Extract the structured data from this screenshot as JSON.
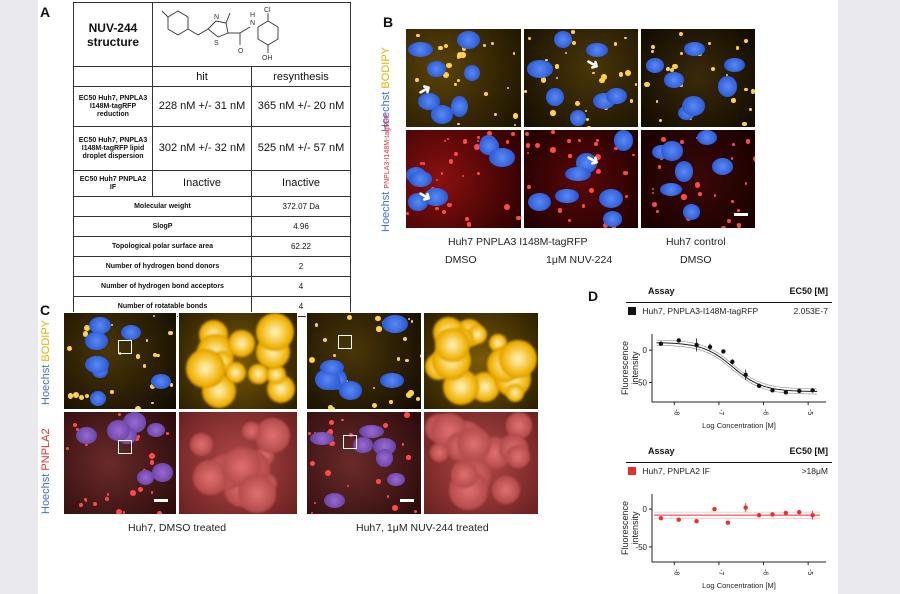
{
  "panels": {
    "a": "A",
    "b": "B",
    "c": "C",
    "d": "D"
  },
  "table": {
    "title": "NUV-244 structure",
    "col_hit": "hit",
    "col_resynth": "resynthesis",
    "rows": [
      {
        "label": "EC50 Huh7, PNPLA3 I148M-tagRFP reduction",
        "hit": "228 nM +/- 31 nM",
        "resynth": "365 nM +/- 20 nM"
      },
      {
        "label": "EC50 Huh7, PNPLA3 I148M-tagRFP lipid droplet dispersion",
        "hit": "302 nM +/- 32 nM",
        "resynth": "525 nM +/- 57 nM"
      },
      {
        "label": "EC50 Huh7 PNPLA2 IF",
        "hit": "Inactive",
        "resynth": "Inactive"
      }
    ],
    "props": [
      {
        "label": "Molecular weight",
        "value": "372.07 Da"
      },
      {
        "label": "SlogP",
        "value": "4.96"
      },
      {
        "label": "Topological polar surface area",
        "value": "62.22"
      },
      {
        "label": "Number of hydrogen bond donors",
        "value": "2"
      },
      {
        "label": "Number of hydrogen bond acceptors",
        "value": "4"
      },
      {
        "label": "Number of rotatable bonds",
        "value": "4"
      }
    ],
    "atoms": {
      "n": "N",
      "s": "S",
      "o": "O",
      "h": "H",
      "cl": "Cl",
      "oh": "OH"
    }
  },
  "panel_b": {
    "row1_label_a": "Hoechst",
    "row1_label_b": "BODIPY",
    "row2_label_a": "Hoechst",
    "row2_label_b": "PNPLA3-I148M-tagRFP",
    "cap_line": "Huh7 PNPLA3 I148M-tagRFP",
    "cap_control": "Huh7 control",
    "cap_dmso1": "DMSO",
    "cap_nuv": "1μM NUV-224",
    "cap_dmso2": "DMSO"
  },
  "panel_c": {
    "row1_label_a": "Hoechst",
    "row1_label_b": "BODIPY",
    "row2_label_a": "Hoechst",
    "row2_label_b": "PNPLA2",
    "cap_left": "Huh7, DMSO treated",
    "cap_right": "Huh7, 1μM NUV-244 treated"
  },
  "panel_d": {
    "assay_header": "Assay",
    "ec50_header": "EC50 [M]",
    "ec50_header2": "EC50 [M]",
    "assay1_name": "Huh7, PNPLA3-I148M-tagRFP",
    "assay1_ec50": "2.053E-7",
    "assay2_name": "Huh7, PNPLA2 IF",
    "assay2_ec50": ">18μM",
    "assay1_color": "#111111",
    "assay2_color": "#e53030"
  },
  "chart_data": [
    {
      "type": "scatter",
      "title": "Huh7, PNPLA3-I148M-tagRFP",
      "xlabel": "Log Concentration [M]",
      "ylabel": "Fluorescence intensity",
      "x_ticks": [
        "-8",
        "-7",
        "-6",
        "-5"
      ],
      "y_ticks": [
        "0",
        "-50"
      ],
      "xlim": [
        -8.5,
        -4.6
      ],
      "ylim": [
        -80,
        25
      ],
      "x": [
        -8.3,
        -7.9,
        -7.5,
        -7.2,
        -6.9,
        -6.7,
        -6.4,
        -6.1,
        -5.8,
        -5.5,
        -5.2,
        -4.9
      ],
      "y": [
        10,
        15,
        8,
        5,
        -2,
        -18,
        -38,
        -55,
        -62,
        -65,
        -63,
        -62
      ],
      "err": [
        2,
        2,
        10,
        5,
        3,
        4,
        8,
        3,
        2,
        2,
        2,
        2
      ],
      "fit": {
        "top": 12,
        "bottom": -64,
        "logec50": -6.69,
        "hill": 1.3
      }
    },
    {
      "type": "scatter",
      "title": "Huh7, PNPLA2 IF",
      "xlabel": "Log Concentration [M]",
      "ylabel": "Fluorescence intensity",
      "x_ticks": [
        "-8",
        "-7",
        "-6",
        "-5"
      ],
      "y_ticks": [
        "0",
        "-50"
      ],
      "xlim": [
        -8.5,
        -4.6
      ],
      "ylim": [
        -70,
        20
      ],
      "x": [
        -8.3,
        -7.9,
        -7.5,
        -7.1,
        -6.8,
        -6.4,
        -6.1,
        -5.8,
        -5.5,
        -5.2,
        -4.9
      ],
      "y": [
        -12,
        -14,
        -16,
        0,
        -18,
        2,
        -8,
        -7,
        -5,
        -4,
        -8
      ],
      "err": [
        2,
        2,
        2,
        2,
        2,
        6,
        2,
        2,
        2,
        2,
        6
      ],
      "fit": {
        "constant": -8
      }
    }
  ]
}
